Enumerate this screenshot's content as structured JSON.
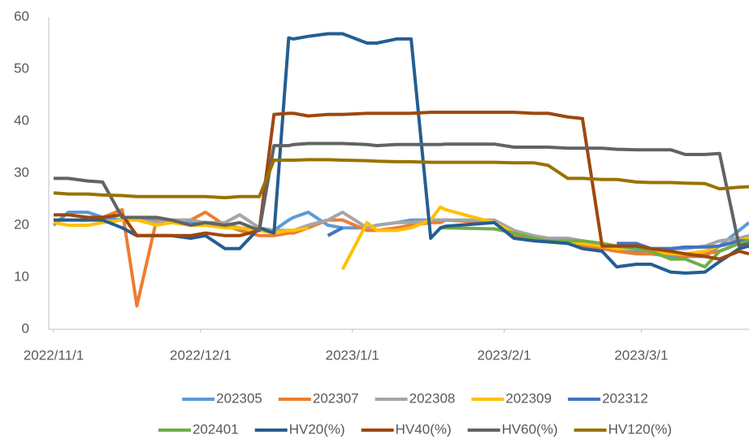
{
  "chart_data": {
    "type": "line",
    "x": [
      "2022/11/1",
      "2022/11/4",
      "2022/11/8",
      "2022/11/11",
      "2022/11/15",
      "2022/11/18",
      "2022/11/22",
      "2022/11/25",
      "2022/11/29",
      "2022/12/2",
      "2022/12/6",
      "2022/12/9",
      "2022/12/13",
      "2022/12/16",
      "2022/12/19",
      "2022/12/20",
      "2022/12/23",
      "2022/12/27",
      "2022/12/30",
      "2023/1/4",
      "2023/1/6",
      "2023/1/10",
      "2023/1/13",
      "2023/1/17",
      "2023/1/19",
      "2023/1/20",
      "2023/1/30",
      "2023/2/3",
      "2023/2/7",
      "2023/2/10",
      "2023/2/14",
      "2023/2/17",
      "2023/2/21",
      "2023/2/24",
      "2023/2/28",
      "2023/3/3",
      "2023/3/7",
      "2023/3/10",
      "2023/3/14",
      "2023/3/17",
      "2023/3/21",
      "2023/3/23"
    ],
    "xlim": [
      "2022/10/31",
      "2023/3/23"
    ],
    "xticks": [
      "2022/11/1",
      "2022/12/1",
      "2023/1/1",
      "2023/2/1",
      "2023/3/1"
    ],
    "ylim": [
      0,
      60
    ],
    "yticks": [
      0,
      10,
      20,
      30,
      40,
      50,
      60
    ],
    "grid": false,
    "legend": "bottom",
    "series": [
      {
        "name": "202305",
        "color": "#5B9BD5",
        "values": [
          20,
          22.5,
          22.5,
          21.5,
          21,
          21,
          21,
          21,
          20.5,
          20.5,
          20,
          19.5,
          19,
          19,
          21,
          21.5,
          22.5,
          20,
          19.5,
          19.5,
          20,
          20.5,
          21,
          21,
          21,
          21,
          20.5,
          18,
          17.5,
          17,
          17,
          16.5,
          16,
          15,
          15,
          14.5,
          14,
          14,
          14,
          16,
          19,
          20.5
        ]
      },
      {
        "name": "202307",
        "color": "#ED7D31",
        "values": [
          21,
          21,
          21,
          21.5,
          23,
          4.5,
          21,
          21,
          21,
          22.5,
          20,
          19,
          18,
          18,
          18.5,
          18.5,
          19.5,
          21,
          21,
          19,
          19,
          19.5,
          20,
          20.5,
          20.5,
          21,
          20.5,
          18,
          17.5,
          17,
          16.5,
          16,
          15.5,
          15,
          14.5,
          14.5,
          14.5,
          14,
          14.5,
          15,
          16.5,
          17
        ]
      },
      {
        "name": "202308",
        "color": "#A5A5A5",
        "values": [
          null,
          null,
          null,
          null,
          21.5,
          21,
          20.5,
          21,
          21,
          20.5,
          20.5,
          22,
          19.5,
          19,
          19,
          19,
          20,
          21,
          22.5,
          19.5,
          20,
          20.5,
          20.5,
          21,
          21,
          21,
          21,
          19,
          18,
          17.5,
          17.5,
          17,
          16,
          15.5,
          15.5,
          15.5,
          15.5,
          15.5,
          16,
          17,
          17.5,
          18
        ]
      },
      {
        "name": "202309",
        "color": "#FFC000",
        "values": [
          20.5,
          20,
          20,
          20.5,
          21,
          21,
          20,
          20.5,
          20,
          20,
          19.5,
          19.5,
          19,
          18.5,
          19,
          19,
          19.5,
          null,
          11.5,
          20.5,
          19,
          19,
          19.5,
          21,
          23.5,
          23,
          20.5,
          18.5,
          17.5,
          17,
          16.5,
          16.5,
          16,
          15.5,
          15.5,
          15,
          14.5,
          14.5,
          15,
          16,
          17,
          17.5
        ]
      },
      {
        "name": "202312",
        "color": "#4472C4",
        "values": [
          null,
          null,
          null,
          null,
          null,
          null,
          null,
          null,
          null,
          null,
          null,
          null,
          null,
          null,
          null,
          null,
          null,
          18,
          19.5,
          null,
          null,
          null,
          null,
          null,
          null,
          null,
          null,
          null,
          null,
          null,
          null,
          null,
          null,
          16.5,
          16.5,
          15.5,
          15.5,
          15.8,
          15.8,
          16,
          17,
          17
        ]
      },
      {
        "name": "202401",
        "color": "#70AD47",
        "values": [
          null,
          null,
          null,
          null,
          null,
          null,
          null,
          null,
          null,
          null,
          null,
          null,
          null,
          null,
          null,
          null,
          null,
          null,
          null,
          null,
          null,
          null,
          null,
          null,
          19.5,
          19.5,
          19.3,
          18.5,
          17.5,
          17,
          17,
          17,
          16.5,
          16,
          15.5,
          15,
          13.5,
          13.5,
          12,
          15,
          16.5,
          17
        ]
      },
      {
        "name": "HV20(%)",
        "color": "#255E91",
        "values": [
          21,
          21,
          21,
          21,
          19.5,
          18,
          18,
          18,
          17.5,
          18,
          15.5,
          15.5,
          19.5,
          18.5,
          56,
          55.8,
          56.3,
          56.8,
          56.8,
          55,
          55,
          55.8,
          55.8,
          17.5,
          19.5,
          19.8,
          20.5,
          17.5,
          17,
          16.8,
          16.5,
          15.5,
          15,
          12,
          12.5,
          12.5,
          11,
          10.8,
          11,
          13,
          15.5,
          16
        ]
      },
      {
        "name": "HV40(%)",
        "color": "#9E480E",
        "values": [
          22,
          22,
          21.5,
          21.5,
          22,
          18,
          18,
          18,
          18,
          18.5,
          18,
          18,
          19,
          41.3,
          41.5,
          41.5,
          41,
          41.3,
          41.3,
          41.5,
          41.5,
          41.5,
          41.5,
          41.7,
          41.7,
          41.7,
          41.7,
          41.7,
          41.5,
          41.5,
          40.8,
          40.5,
          16,
          16,
          16,
          15.5,
          15,
          14.5,
          14,
          13.5,
          15,
          14.5
        ]
      },
      {
        "name": "HV60(%)",
        "color": "#636363",
        "values": [
          29,
          29,
          28.5,
          28.3,
          21.5,
          21.5,
          21.5,
          21,
          20,
          20.5,
          20,
          20.5,
          19,
          35.3,
          35.3,
          35.5,
          35.7,
          35.7,
          35.7,
          35.5,
          35.3,
          35.5,
          35.5,
          35.5,
          35.5,
          35.6,
          35.6,
          35,
          35,
          35,
          34.8,
          34.8,
          34.8,
          34.6,
          34.5,
          34.5,
          34.5,
          33.6,
          33.6,
          33.8,
          16,
          16.5
        ]
      },
      {
        "name": "HV120(%)",
        "color": "#997300",
        "values": [
          26.2,
          26,
          26,
          25.8,
          25.7,
          25.5,
          25.5,
          25.5,
          25.5,
          25.5,
          25.3,
          25.5,
          25.5,
          32.5,
          32.5,
          32.5,
          32.6,
          32.6,
          32.5,
          32.4,
          32.3,
          32.2,
          32.2,
          32.1,
          32.1,
          32.1,
          32.1,
          32,
          32,
          31.5,
          29,
          29,
          28.8,
          28.8,
          28.3,
          28.2,
          28.2,
          28.1,
          28,
          27,
          27.3,
          27.4
        ]
      }
    ]
  }
}
